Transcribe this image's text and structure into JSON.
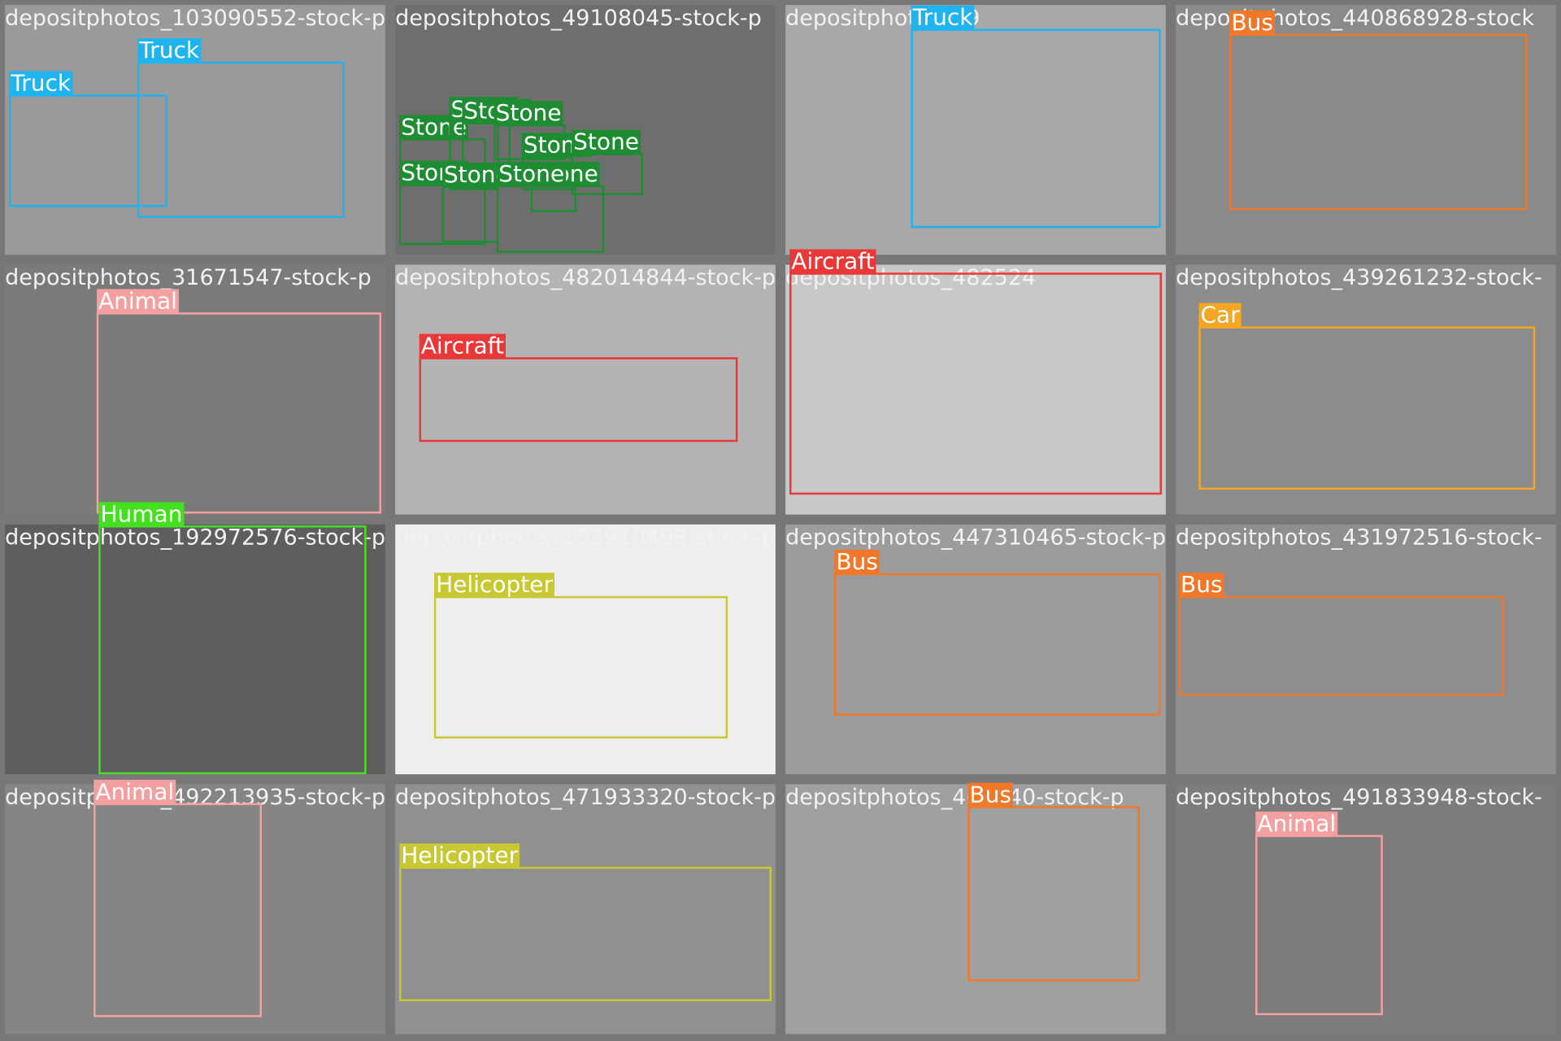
{
  "tiles": [
    {
      "filename": "depositphotos_103090552-stock-p",
      "boxes": [
        {
          "label": "Truck",
          "color": "#1fb4f0"
        },
        {
          "label": "Truck",
          "color": "#1fb4f0"
        }
      ]
    },
    {
      "filename": "depositphotos_49108045-stock-p",
      "boxes": [
        {
          "label": "Stone",
          "color": "#1e8c32"
        },
        {
          "label": "Stone",
          "color": "#1e8c32"
        },
        {
          "label": "Stone",
          "color": "#1e8c32"
        },
        {
          "label": "Stone",
          "color": "#1e8c32"
        },
        {
          "label": "Stone",
          "color": "#1e8c32"
        },
        {
          "label": "Stone",
          "color": "#1e8c32"
        },
        {
          "label": "Stone",
          "color": "#1e8c32"
        },
        {
          "label": "Stone",
          "color": "#1e8c32"
        },
        {
          "label": "Stone",
          "color": "#1e8c32"
        },
        {
          "label": "Stone",
          "color": "#1e8c32"
        }
      ]
    },
    {
      "filename": "depositphotos_79",
      "boxes": [
        {
          "label": "Truck",
          "color": "#1fb4f0"
        }
      ]
    },
    {
      "filename": "depositphotos_440868928-stock",
      "boxes": [
        {
          "label": "Bus",
          "color": "#f07828"
        }
      ]
    },
    {
      "filename": "depositphotos_31671547-stock-p",
      "boxes": [
        {
          "label": "Animal",
          "color": "#f5a0a0"
        }
      ]
    },
    {
      "filename": "depositphotos_482014844-stock-p",
      "boxes": [
        {
          "label": "Aircraft",
          "color": "#e83838"
        }
      ]
    },
    {
      "filename": "depositphotos_482524",
      "boxes": [
        {
          "label": "Aircraft",
          "color": "#e83838"
        }
      ]
    },
    {
      "filename": "depositphotos_439261232-stock-",
      "boxes": [
        {
          "label": "Car",
          "color": "#f5a623"
        }
      ]
    },
    {
      "filename": "depositphotos_192972576-stock-p",
      "boxes": [
        {
          "label": "Human",
          "color": "#44e020"
        }
      ]
    },
    {
      "filename": "depositphotos_153910498-stock-p",
      "boxes": [
        {
          "label": "Helicopter",
          "color": "#c8c832"
        }
      ]
    },
    {
      "filename": "depositphotos_447310465-stock-p",
      "boxes": [
        {
          "label": "Bus",
          "color": "#f07828"
        }
      ]
    },
    {
      "filename": "depositphotos_431972516-stock-",
      "boxes": [
        {
          "label": "Bus",
          "color": "#f07828"
        }
      ]
    },
    {
      "filename": "depositphotos_492213935-stock-p",
      "boxes": [
        {
          "label": "Animal",
          "color": "#f5a0a0"
        }
      ]
    },
    {
      "filename": "depositphotos_471933320-stock-p",
      "boxes": [
        {
          "label": "Helicopter",
          "color": "#c8c832"
        }
      ]
    },
    {
      "filename": "depositphotos_400940-stock-p",
      "boxes": [
        {
          "label": "Bus",
          "color": "#f07828"
        }
      ]
    },
    {
      "filename": "depositphotos_491833948-stock-",
      "boxes": [
        {
          "label": "Animal",
          "color": "#f5a0a0"
        }
      ]
    }
  ]
}
